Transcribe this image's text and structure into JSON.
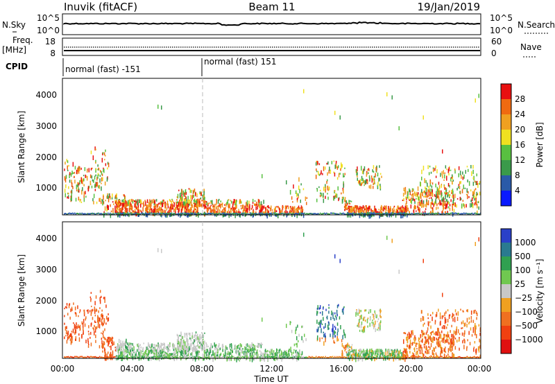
{
  "header": {
    "station": "Inuvik (fitACF)",
    "beam": "Beam 11",
    "date": "19/Jan/2019"
  },
  "top_panels": {
    "nsky_label": "N.Sky",
    "nsky_ticks": [
      "10^5",
      "10^0"
    ],
    "nsearch_label": "N.Search",
    "nsearch_ticks": [
      "10^5",
      "10^0"
    ],
    "freq_label": "Freq.",
    "freq_unit": "[MHz]",
    "freq_ticks": [
      "18",
      "8"
    ],
    "nave_label": "Nave",
    "nave_ticks": [
      "60",
      "0"
    ],
    "cpid_label": "CPID",
    "cpid_segments": [
      {
        "label": "normal (fast) -151",
        "start_hour": 0,
        "end_hour": 8
      },
      {
        "label": "normal (fast) 151",
        "start_hour": 8,
        "end_hour": 24
      }
    ]
  },
  "chart_data": [
    {
      "type": "heatmap",
      "ylabel": "Slant Range [km]",
      "ylim": [
        180,
        4600
      ],
      "y_ticks": [
        "1000",
        "2000",
        "3000",
        "4000"
      ],
      "x_ticks": [
        "00:00",
        "04:00",
        "08:00",
        "12:00",
        "16:00",
        "20:00",
        "00:00"
      ],
      "xlim_hours": [
        0,
        24
      ],
      "colorbar_label": "Power [dB]",
      "colorbar_ticks": [
        "4",
        "8",
        "12",
        "16",
        "20",
        "24",
        "28"
      ],
      "colorbar_colors": [
        "#0a1aff",
        "#2a5aa8",
        "#3a9a4a",
        "#58c040",
        "#f0e020",
        "#f0a020",
        "#f06a10",
        "#e81010"
      ],
      "vline_hour": 8
    },
    {
      "type": "heatmap",
      "ylabel": "Slant Range [km]",
      "xlabel": "Time UT",
      "ylim": [
        180,
        4600
      ],
      "y_ticks": [
        "1000",
        "2000",
        "3000",
        "4000"
      ],
      "x_ticks": [
        "00:00",
        "04:00",
        "08:00",
        "12:00",
        "16:00",
        "20:00",
        "00:00"
      ],
      "xlim_hours": [
        0,
        24
      ],
      "colorbar_label": "Velocity [m s⁻¹]",
      "colorbar_ticks": [
        "1000",
        "500",
        "100",
        "25",
        "−25",
        "−100",
        "−500",
        "−1000"
      ],
      "colorbar_colors": [
        "#2a40c8",
        "#2a7a90",
        "#30a050",
        "#70c850",
        "#c8c8c8",
        "#f0a020",
        "#f07020",
        "#f04010",
        "#e01010"
      ],
      "vline_hour": 8
    }
  ]
}
